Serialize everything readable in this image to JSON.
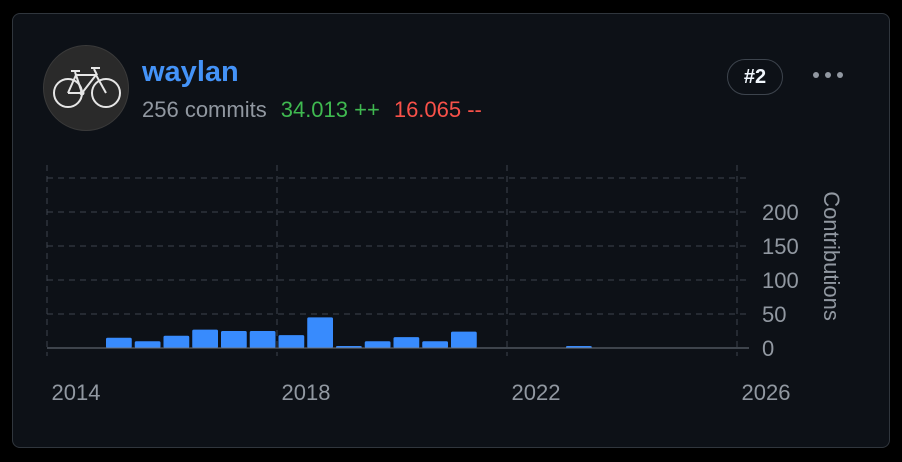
{
  "contributor": {
    "username": "waylan",
    "commits": "256 commits",
    "additions": "34.013 ++",
    "deletions": "16.065 --",
    "rank": "#2",
    "avatar_icon": "bicycle-icon",
    "more_icon": "kebab-menu-icon"
  },
  "colors": {
    "username": "#4493f8",
    "additions": "#3fb950",
    "deletions": "#f85149",
    "bar": "#388bfd",
    "card_bg": "#0d1117"
  },
  "chart_data": {
    "type": "bar",
    "ylabel": "Contributions",
    "xlabel": "",
    "ylim": [
      0,
      250
    ],
    "yticks": [
      0,
      50,
      100,
      150,
      200
    ],
    "xlim": [
      2014,
      2026
    ],
    "xticks": [
      "2014",
      "2018",
      "2022",
      "2026"
    ],
    "grid": true,
    "y_axis_position": "right",
    "bars": [
      {
        "period": "2015-H1",
        "value": 15
      },
      {
        "period": "2015-H2",
        "value": 10
      },
      {
        "period": "2016-H1",
        "value": 18
      },
      {
        "period": "2016-H2",
        "value": 27
      },
      {
        "period": "2017-H1",
        "value": 25
      },
      {
        "period": "2017-H2",
        "value": 25
      },
      {
        "period": "2018-H1",
        "value": 19
      },
      {
        "period": "2018-H2",
        "value": 45
      },
      {
        "period": "2019-H1",
        "value": 3
      },
      {
        "period": "2019-H2",
        "value": 10
      },
      {
        "period": "2020-H1",
        "value": 16
      },
      {
        "period": "2020-H2",
        "value": 10
      },
      {
        "period": "2021-H1",
        "value": 24
      },
      {
        "period": "2023-H1",
        "value": 3
      }
    ]
  }
}
